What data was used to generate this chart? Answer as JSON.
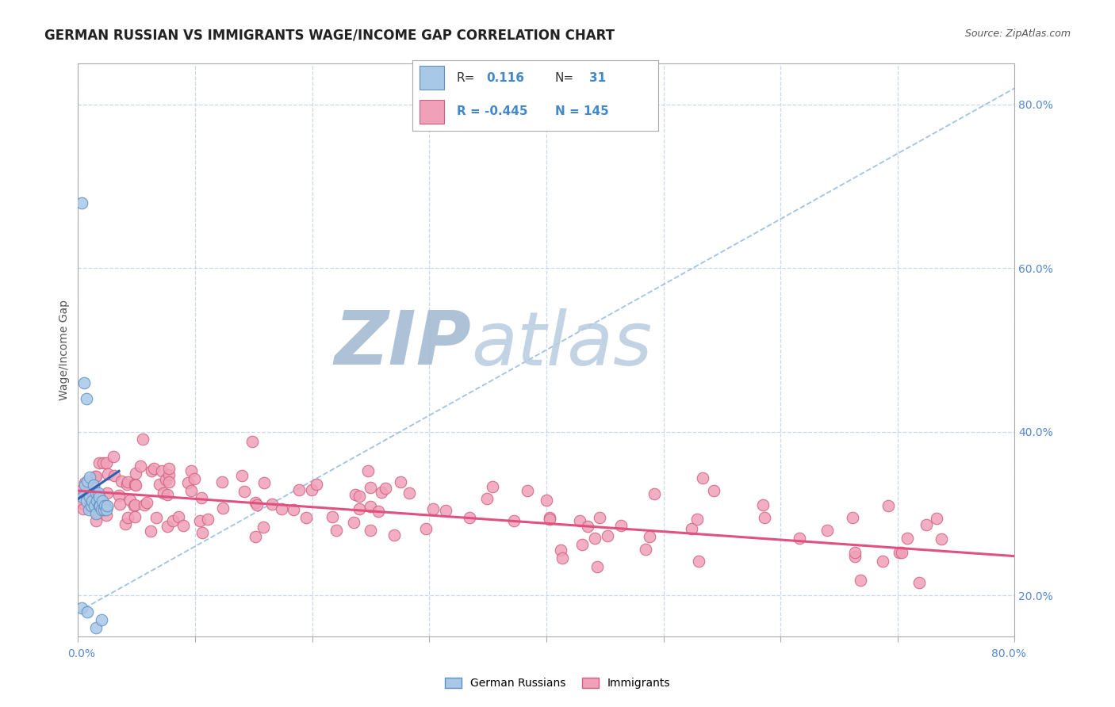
{
  "title": "GERMAN RUSSIAN VS IMMIGRANTS WAGE/INCOME GAP CORRELATION CHART",
  "source": "Source: ZipAtlas.com",
  "ylabel": "Wage/Income Gap",
  "scatter_color_gr": "#a8c8e8",
  "scatter_color_imm": "#f0a0b8",
  "scatter_edgecolor_gr": "#6090c0",
  "scatter_edgecolor_imm": "#d06080",
  "background_color": "#ffffff",
  "grid_color": "#c8d8e8",
  "trendline_gr_color": "#3060b0",
  "trendline_imm_color": "#e05080",
  "dashed_line_color": "#90b8e0",
  "watermark_ZIP_color": "#b8cce0",
  "watermark_atlas_color": "#c8dce8",
  "xlim": [
    0.0,
    0.8
  ],
  "ylim": [
    0.15,
    0.85
  ],
  "ytick_vals": [
    0.2,
    0.4,
    0.6,
    0.8
  ],
  "ytick_labels": [
    "20.0%",
    "40.0%",
    "60.0%",
    "80.0%"
  ],
  "title_fontsize": 12,
  "source_fontsize": 9,
  "axis_fontsize": 10,
  "legend_fontsize": 12
}
